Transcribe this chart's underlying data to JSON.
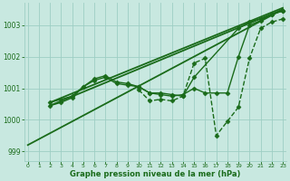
{
  "xlabel": "Graphe pression niveau de la mer (hPa)",
  "background_color": "#c8e8e0",
  "grid_color": "#9ecec4",
  "line_color": "#1a6b1a",
  "text_color": "#1a6b1a",
  "ylim": [
    998.7,
    1003.7
  ],
  "xlim": [
    -0.3,
    23.3
  ],
  "yticks": [
    999,
    1000,
    1001,
    1002,
    1003
  ],
  "xticks": [
    0,
    1,
    2,
    3,
    4,
    5,
    6,
    7,
    8,
    9,
    10,
    11,
    12,
    13,
    14,
    15,
    16,
    17,
    18,
    19,
    20,
    21,
    22,
    23
  ],
  "series": [
    {
      "x": [
        2,
        3,
        4,
        5,
        6,
        7,
        8,
        9,
        10,
        11,
        12,
        13,
        14,
        15,
        19,
        20,
        21,
        22,
        23
      ],
      "y": [
        1000.45,
        1000.55,
        1000.7,
        1001.05,
        1001.25,
        1001.35,
        1001.15,
        1001.1,
        1001.05,
        1000.85,
        1000.85,
        1000.8,
        1000.75,
        1001.35,
        1002.9,
        1003.1,
        1003.2,
        1003.35,
        1003.45
      ],
      "marker": "D",
      "markersize": 2.5,
      "linewidth": 1.0,
      "linestyle": "-"
    },
    {
      "x": [
        2,
        3,
        4,
        5,
        6,
        7,
        8,
        9,
        10,
        11,
        12,
        13,
        14,
        15,
        16,
        17,
        18,
        19,
        20,
        21,
        22,
        23
      ],
      "y": [
        1000.55,
        1000.65,
        1000.75,
        1001.05,
        1001.3,
        1001.4,
        1001.2,
        1001.15,
        1001.05,
        1000.85,
        1000.8,
        1000.75,
        1000.8,
        1001.0,
        1000.85,
        1000.85,
        1000.85,
        1002.0,
        1003.0,
        1003.15,
        1003.35,
        1003.45
      ],
      "marker": "D",
      "markersize": 2.5,
      "linewidth": 1.0,
      "linestyle": "-"
    },
    {
      "x": [
        10,
        11,
        12,
        13,
        14,
        15,
        16,
        17,
        18,
        19,
        20,
        21,
        22,
        23
      ],
      "y": [
        1000.95,
        1000.6,
        1000.65,
        1000.6,
        1000.75,
        1001.8,
        1001.95,
        999.5,
        999.95,
        1000.4,
        1001.95,
        1002.9,
        1003.1,
        1003.2
      ],
      "marker": "D",
      "markersize": 2.5,
      "linewidth": 1.0,
      "linestyle": "--"
    },
    {
      "x": [
        0,
        23
      ],
      "y": [
        999.2,
        1003.5
      ],
      "marker": null,
      "markersize": 0,
      "linewidth": 1.3,
      "linestyle": "-"
    },
    {
      "x": [
        2,
        23
      ],
      "y": [
        1000.45,
        1003.5
      ],
      "marker": null,
      "markersize": 0,
      "linewidth": 1.3,
      "linestyle": "-"
    },
    {
      "x": [
        2,
        23
      ],
      "y": [
        1000.55,
        1003.55
      ],
      "marker": null,
      "markersize": 0,
      "linewidth": 1.3,
      "linestyle": "-"
    }
  ]
}
